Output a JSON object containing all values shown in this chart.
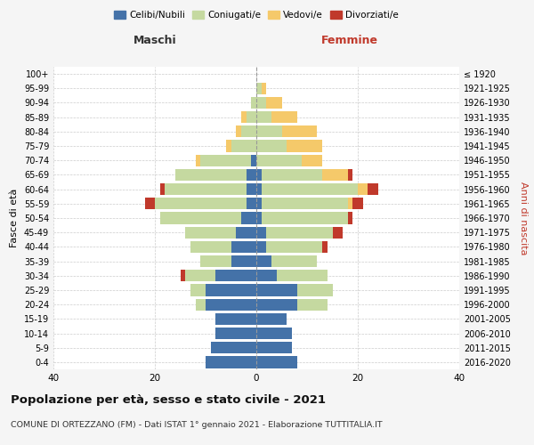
{
  "age_groups": [
    "0-4",
    "5-9",
    "10-14",
    "15-19",
    "20-24",
    "25-29",
    "30-34",
    "35-39",
    "40-44",
    "45-49",
    "50-54",
    "55-59",
    "60-64",
    "65-69",
    "70-74",
    "75-79",
    "80-84",
    "85-89",
    "90-94",
    "95-99",
    "100+"
  ],
  "birth_years": [
    "2016-2020",
    "2011-2015",
    "2006-2010",
    "2001-2005",
    "1996-2000",
    "1991-1995",
    "1986-1990",
    "1981-1985",
    "1976-1980",
    "1971-1975",
    "1966-1970",
    "1961-1965",
    "1956-1960",
    "1951-1955",
    "1946-1950",
    "1941-1945",
    "1936-1940",
    "1931-1935",
    "1926-1930",
    "1921-1925",
    "≤ 1920"
  ],
  "males": {
    "celibi": [
      10,
      9,
      8,
      8,
      10,
      10,
      8,
      5,
      5,
      4,
      3,
      2,
      2,
      2,
      1,
      0,
      0,
      0,
      0,
      0,
      0
    ],
    "coniugati": [
      0,
      0,
      0,
      0,
      2,
      3,
      6,
      6,
      8,
      10,
      16,
      18,
      16,
      14,
      10,
      5,
      3,
      2,
      1,
      0,
      0
    ],
    "vedovi": [
      0,
      0,
      0,
      0,
      0,
      0,
      0,
      0,
      0,
      0,
      0,
      0,
      0,
      0,
      1,
      1,
      1,
      1,
      0,
      0,
      0
    ],
    "divorziati": [
      0,
      0,
      0,
      0,
      0,
      0,
      1,
      0,
      0,
      0,
      0,
      2,
      1,
      0,
      0,
      0,
      0,
      0,
      0,
      0,
      0
    ]
  },
  "females": {
    "nubili": [
      8,
      7,
      7,
      6,
      8,
      8,
      4,
      3,
      2,
      2,
      1,
      1,
      1,
      1,
      0,
      0,
      0,
      0,
      0,
      0,
      0
    ],
    "coniugate": [
      0,
      0,
      0,
      0,
      6,
      7,
      10,
      9,
      11,
      13,
      17,
      17,
      19,
      12,
      9,
      6,
      5,
      3,
      2,
      1,
      0
    ],
    "vedove": [
      0,
      0,
      0,
      0,
      0,
      0,
      0,
      0,
      0,
      0,
      0,
      1,
      2,
      5,
      4,
      7,
      7,
      5,
      3,
      1,
      0
    ],
    "divorziate": [
      0,
      0,
      0,
      0,
      0,
      0,
      0,
      0,
      1,
      2,
      1,
      2,
      2,
      1,
      0,
      0,
      0,
      0,
      0,
      0,
      0
    ]
  },
  "colors": {
    "celibi": "#4472a8",
    "coniugati": "#c5d9a0",
    "vedovi": "#f5c96a",
    "divorziati": "#c0392b"
  },
  "xlim": 40,
  "title": "Popolazione per età, sesso e stato civile - 2021",
  "subtitle": "COMUNE DI ORTEZZANO (FM) - Dati ISTAT 1° gennaio 2021 - Elaborazione TUTTITALIA.IT",
  "xlabel_left": "Maschi",
  "xlabel_right": "Femmine",
  "ylabel_left": "Fasce di età",
  "ylabel_right": "Anni di nascita",
  "bg_color": "#f5f5f5",
  "plot_bg_color": "#ffffff"
}
